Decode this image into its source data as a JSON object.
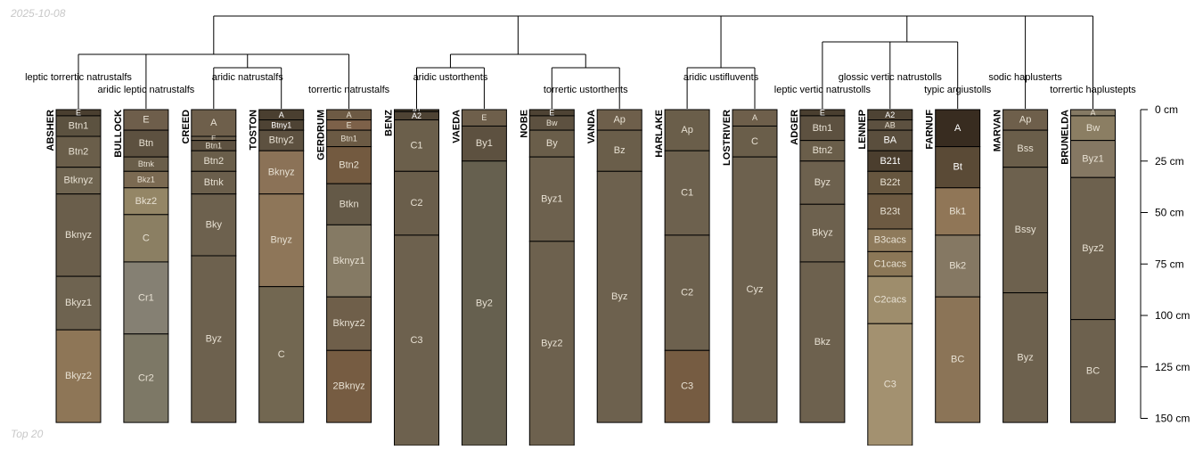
{
  "date": "2025-10-08",
  "footer": "Top 20",
  "axis": {
    "unit": "cm",
    "max_depth": 150,
    "ticks": [
      {
        "depth": 0,
        "label": "0 cm"
      },
      {
        "depth": 25,
        "label": "25 cm"
      },
      {
        "depth": 50,
        "label": "50 cm"
      },
      {
        "depth": 75,
        "label": "75 cm"
      },
      {
        "depth": 100,
        "label": "100 cm"
      },
      {
        "depth": 125,
        "label": "125 cm"
      },
      {
        "depth": 150,
        "label": "150 cm"
      }
    ]
  },
  "groups": [
    {
      "label": "leptic torrertic natrustalfs",
      "members": [
        "ABSHER"
      ]
    },
    {
      "label": "aridic leptic natrustalfs",
      "members": [
        "BULLOCK"
      ]
    },
    {
      "label": "aridic natrustalfs",
      "members": [
        "CREED",
        "TOSTON"
      ]
    },
    {
      "label": "torrertic natrustalfs",
      "members": [
        "GERDRUM"
      ]
    },
    {
      "label": "aridic ustorthents",
      "members": [
        "BENZ",
        "VAEDA"
      ]
    },
    {
      "label": "torrertic ustorthents",
      "members": [
        "NOBE",
        "VANDA"
      ]
    },
    {
      "label": "aridic ustifluvents",
      "members": [
        "HARLAKE",
        "LOSTRIVER"
      ]
    },
    {
      "label": "leptic vertic natrustolls",
      "members": [
        "ADGER"
      ]
    },
    {
      "label": "glossic vertic natrustolls",
      "members": [
        "LENNEP"
      ]
    },
    {
      "label": "typic argiustolls",
      "members": [
        "FARNUF"
      ]
    },
    {
      "label": "sodic haplusterts",
      "members": [
        "MARVAN"
      ]
    },
    {
      "label": "torrertic haplustepts",
      "members": [
        "BRUNELDA"
      ]
    }
  ],
  "profiles": [
    {
      "name": "ABSHER",
      "horizons": [
        {
          "name": "E",
          "top": 0,
          "bottom": 3,
          "color": "#4a3f30"
        },
        {
          "name": "Btn1",
          "top": 3,
          "bottom": 13,
          "color": "#5c5240"
        },
        {
          "name": "Btn2",
          "top": 13,
          "bottom": 28,
          "color": "#6a5e4a"
        },
        {
          "name": "Btknyz",
          "top": 28,
          "bottom": 41,
          "color": "#6f6450"
        },
        {
          "name": "Bknyz",
          "top": 41,
          "bottom": 81,
          "color": "#6a5e4b"
        },
        {
          "name": "Bkyz1",
          "top": 81,
          "bottom": 107,
          "color": "#6e6350"
        },
        {
          "name": "Bkyz2",
          "top": 107,
          "bottom": 152,
          "color": "#8e7657"
        }
      ]
    },
    {
      "name": "BULLOCK",
      "horizons": [
        {
          "name": "E",
          "top": 0,
          "bottom": 10,
          "color": "#6e5e4b"
        },
        {
          "name": "Btn",
          "top": 10,
          "bottom": 23,
          "color": "#5d5140"
        },
        {
          "name": "Btnk",
          "top": 23,
          "bottom": 30,
          "color": "#6a5e4a"
        },
        {
          "name": "Bkz1",
          "top": 30,
          "bottom": 38,
          "color": "#7b6a52"
        },
        {
          "name": "Bkz2",
          "top": 38,
          "bottom": 51,
          "color": "#948666"
        },
        {
          "name": "C",
          "top": 51,
          "bottom": 74,
          "color": "#8b7f63"
        },
        {
          "name": "Cr1",
          "top": 74,
          "bottom": 109,
          "color": "#858073"
        },
        {
          "name": "Cr2",
          "top": 109,
          "bottom": 152,
          "color": "#7d7866"
        }
      ]
    },
    {
      "name": "CREED",
      "horizons": [
        {
          "name": "A",
          "top": 0,
          "bottom": 13,
          "color": "#6e5f4b"
        },
        {
          "name": "E",
          "top": 13,
          "bottom": 15,
          "color": "#6c5f4c"
        },
        {
          "name": "Btn1",
          "top": 15,
          "bottom": 20,
          "color": "#5d5140"
        },
        {
          "name": "Btn2",
          "top": 20,
          "bottom": 30,
          "color": "#6a5e4a"
        },
        {
          "name": "Btnk",
          "top": 30,
          "bottom": 41,
          "color": "#6b5f4c"
        },
        {
          "name": "Bky",
          "top": 41,
          "bottom": 71,
          "color": "#6d614e"
        },
        {
          "name": "Byz",
          "top": 71,
          "bottom": 152,
          "color": "#6d614e"
        }
      ]
    },
    {
      "name": "TOSTON",
      "horizons": [
        {
          "name": "A",
          "top": 0,
          "bottom": 5,
          "color": "#4a3f30"
        },
        {
          "name": "Btny1",
          "top": 5,
          "bottom": 10,
          "color": "#4e4334"
        },
        {
          "name": "Btny2",
          "top": 10,
          "bottom": 20,
          "color": "#5d5140"
        },
        {
          "name": "Bknyz",
          "top": 20,
          "bottom": 41,
          "color": "#8b7257"
        },
        {
          "name": "Bnyz",
          "top": 41,
          "bottom": 86,
          "color": "#8e7659"
        },
        {
          "name": "C",
          "top": 86,
          "bottom": 152,
          "color": "#726751"
        }
      ]
    },
    {
      "name": "GERDRUM",
      "horizons": [
        {
          "name": "A",
          "top": 0,
          "bottom": 5,
          "color": "#6d5a44"
        },
        {
          "name": "E",
          "top": 5,
          "bottom": 10,
          "color": "#7d6149"
        },
        {
          "name": "Btn1",
          "top": 10,
          "bottom": 18,
          "color": "#6b5a44"
        },
        {
          "name": "Btn2",
          "top": 18,
          "bottom": 36,
          "color": "#735a40"
        },
        {
          "name": "Btkn",
          "top": 36,
          "bottom": 56,
          "color": "#645947"
        },
        {
          "name": "Bknyz1",
          "top": 56,
          "bottom": 91,
          "color": "#857a64"
        },
        {
          "name": "Bknyz2",
          "top": 91,
          "bottom": 117,
          "color": "#6f5f4a"
        },
        {
          "name": "2Bknyz",
          "top": 117,
          "bottom": 152,
          "color": "#765c42"
        }
      ]
    },
    {
      "name": "BENZ",
      "horizons": [
        {
          "name": "A1",
          "top": 0,
          "bottom": 1,
          "color": "#4a3f30"
        },
        {
          "name": "A2",
          "top": 1,
          "bottom": 5,
          "color": "#4e4334"
        },
        {
          "name": "C1",
          "top": 5,
          "bottom": 30,
          "color": "#6b5f4b"
        },
        {
          "name": "C2",
          "top": 30,
          "bottom": 61,
          "color": "#6a5e4b"
        },
        {
          "name": "C3",
          "top": 61,
          "bottom": 165,
          "color": "#6d614e"
        }
      ]
    },
    {
      "name": "VAEDA",
      "horizons": [
        {
          "name": "E",
          "top": 0,
          "bottom": 8,
          "color": "#6e5f4b"
        },
        {
          "name": "By1",
          "top": 8,
          "bottom": 25,
          "color": "#5d5140"
        },
        {
          "name": "By2",
          "top": 25,
          "bottom": 165,
          "color": "#66604f"
        }
      ]
    },
    {
      "name": "NOBE",
      "horizons": [
        {
          "name": "E",
          "top": 0,
          "bottom": 3,
          "color": "#4e4334"
        },
        {
          "name": "Bw",
          "top": 3,
          "bottom": 10,
          "color": "#5d5140"
        },
        {
          "name": "By",
          "top": 10,
          "bottom": 23,
          "color": "#6a5e4a"
        },
        {
          "name": "Byz1",
          "top": 23,
          "bottom": 64,
          "color": "#6d614e"
        },
        {
          "name": "Byz2",
          "top": 64,
          "bottom": 165,
          "color": "#6d614e"
        }
      ]
    },
    {
      "name": "VANDA",
      "horizons": [
        {
          "name": "Ap",
          "top": 0,
          "bottom": 10,
          "color": "#6e5f4b"
        },
        {
          "name": "Bz",
          "top": 10,
          "bottom": 30,
          "color": "#6a5e4a"
        },
        {
          "name": "Byz",
          "top": 30,
          "bottom": 152,
          "color": "#6d614e"
        }
      ]
    },
    {
      "name": "HARLAKE",
      "horizons": [
        {
          "name": "Ap",
          "top": 0,
          "bottom": 20,
          "color": "#6a5e4a"
        },
        {
          "name": "C1",
          "top": 20,
          "bottom": 61,
          "color": "#6d614e"
        },
        {
          "name": "C2",
          "top": 61,
          "bottom": 117,
          "color": "#6d614e"
        },
        {
          "name": "C3",
          "top": 117,
          "bottom": 152,
          "color": "#765c42"
        }
      ]
    },
    {
      "name": "LOSTRIVER",
      "horizons": [
        {
          "name": "A",
          "top": 0,
          "bottom": 8,
          "color": "#6e5f4b"
        },
        {
          "name": "C",
          "top": 8,
          "bottom": 23,
          "color": "#6a5e4a"
        },
        {
          "name": "Cyz",
          "top": 23,
          "bottom": 152,
          "color": "#6d614e"
        }
      ]
    },
    {
      "name": "ADGER",
      "horizons": [
        {
          "name": "E",
          "top": 0,
          "bottom": 3,
          "color": "#4a3f30"
        },
        {
          "name": "Btn1",
          "top": 3,
          "bottom": 15,
          "color": "#5d5140"
        },
        {
          "name": "Btn2",
          "top": 15,
          "bottom": 25,
          "color": "#6a5e4a"
        },
        {
          "name": "Byz",
          "top": 25,
          "bottom": 46,
          "color": "#6d614e"
        },
        {
          "name": "Bkyz",
          "top": 46,
          "bottom": 74,
          "color": "#6d614e"
        },
        {
          "name": "Bkz",
          "top": 74,
          "bottom": 152,
          "color": "#6d614e"
        }
      ]
    },
    {
      "name": "LENNEP",
      "horizons": [
        {
          "name": "A2",
          "top": 0,
          "bottom": 5,
          "color": "#4e4334"
        },
        {
          "name": "AB",
          "top": 5,
          "bottom": 10,
          "color": "#5d5140"
        },
        {
          "name": "BA",
          "top": 10,
          "bottom": 20,
          "color": "#5a4e3d"
        },
        {
          "name": "B21t",
          "top": 20,
          "bottom": 30,
          "color": "#4b3e2e"
        },
        {
          "name": "B22t",
          "top": 30,
          "bottom": 41,
          "color": "#66563f"
        },
        {
          "name": "B23t",
          "top": 41,
          "bottom": 58,
          "color": "#6d5a42"
        },
        {
          "name": "B3cacs",
          "top": 58,
          "bottom": 69,
          "color": "#8e7a5b"
        },
        {
          "name": "C1cacs",
          "top": 69,
          "bottom": 81,
          "color": "#8b7757"
        },
        {
          "name": "C2cacs",
          "top": 81,
          "bottom": 104,
          "color": "#9e8d6c"
        },
        {
          "name": "C3",
          "top": 104,
          "bottom": 165,
          "color": "#a39170"
        }
      ]
    },
    {
      "name": "FARNUF",
      "horizons": [
        {
          "name": "A",
          "top": 0,
          "bottom": 18,
          "color": "#382c20"
        },
        {
          "name": "Bt",
          "top": 18,
          "bottom": 38,
          "color": "#5a4a36"
        },
        {
          "name": "Bk1",
          "top": 38,
          "bottom": 61,
          "color": "#907657"
        },
        {
          "name": "Bk2",
          "top": 61,
          "bottom": 91,
          "color": "#857863"
        },
        {
          "name": "BC",
          "top": 91,
          "bottom": 152,
          "color": "#8b7457"
        }
      ]
    },
    {
      "name": "MARVAN",
      "horizons": [
        {
          "name": "Ap",
          "top": 0,
          "bottom": 10,
          "color": "#6e5f4b"
        },
        {
          "name": "Bss",
          "top": 10,
          "bottom": 28,
          "color": "#6a5e4a"
        },
        {
          "name": "Bssy",
          "top": 28,
          "bottom": 89,
          "color": "#6d614e"
        },
        {
          "name": "Byz",
          "top": 89,
          "bottom": 152,
          "color": "#6d614e"
        }
      ]
    },
    {
      "name": "BRUNELDA",
      "horizons": [
        {
          "name": "A",
          "top": 0,
          "bottom": 3,
          "color": "#857a64"
        },
        {
          "name": "Bw",
          "top": 3,
          "bottom": 15,
          "color": "#8b7e63"
        },
        {
          "name": "Byz1",
          "top": 15,
          "bottom": 33,
          "color": "#857863"
        },
        {
          "name": "Byz2",
          "top": 33,
          "bottom": 102,
          "color": "#6d614e"
        },
        {
          "name": "BC",
          "top": 102,
          "bottom": 152,
          "color": "#6d614e"
        }
      ]
    }
  ]
}
